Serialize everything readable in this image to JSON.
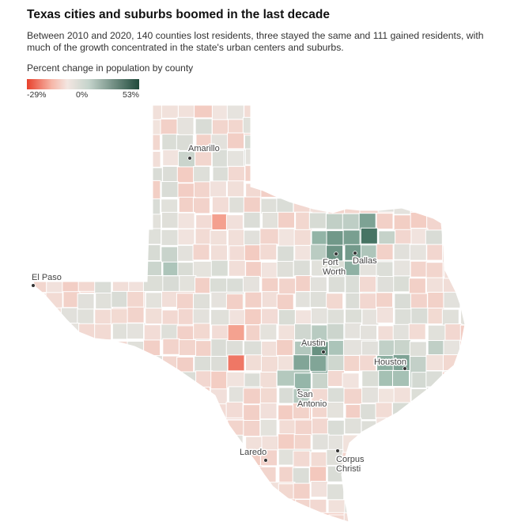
{
  "header": {
    "title": "Texas cities and suburbs boomed in the last decade",
    "subtitle": "Between 2010 and 2020, 140 counties lost residents, three stayed the same and 111 gained residents, with much of the growth concentrated in the state's urban centers and suburbs."
  },
  "legend": {
    "title": "Percent change in population by county",
    "min_label": "-29%",
    "mid_label": "0%",
    "max_label": "53%",
    "min_value": -29,
    "mid_value": 0,
    "max_value": 53,
    "colors": {
      "negative": "#e8412c",
      "zero": "#e9e4df",
      "positive": "#2d5f4d"
    }
  },
  "cities": [
    {
      "name": "Amarillo",
      "lines": [
        "Amarillo"
      ]
    },
    {
      "name": "El Paso",
      "lines": [
        "El Paso"
      ]
    },
    {
      "name": "Fort Worth",
      "lines": [
        "Fort",
        "Worth"
      ]
    },
    {
      "name": "Dallas",
      "lines": [
        "Dallas"
      ]
    },
    {
      "name": "Austin",
      "lines": [
        "Austin"
      ]
    },
    {
      "name": "Houston",
      "lines": [
        "Houston"
      ]
    },
    {
      "name": "San Antonio",
      "lines": [
        "San",
        "Antonio"
      ]
    },
    {
      "name": "Laredo",
      "lines": [
        "Laredo"
      ]
    },
    {
      "name": "Corpus Christi",
      "lines": [
        "Corpus",
        "Christi"
      ]
    }
  ]
}
